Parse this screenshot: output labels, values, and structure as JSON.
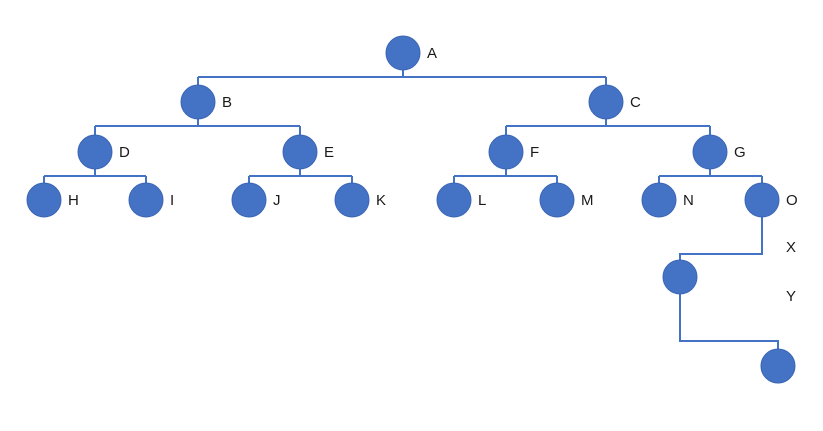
{
  "style": {
    "node_color": "#4472C4",
    "line_color": "#4472C4"
  },
  "nodes": [
    {
      "id": "A",
      "label": "A"
    },
    {
      "id": "B",
      "label": "B"
    },
    {
      "id": "C",
      "label": "C"
    },
    {
      "id": "D",
      "label": "D"
    },
    {
      "id": "E",
      "label": "E"
    },
    {
      "id": "F",
      "label": "F"
    },
    {
      "id": "G",
      "label": "G"
    },
    {
      "id": "H",
      "label": "H"
    },
    {
      "id": "I",
      "label": "I"
    },
    {
      "id": "J",
      "label": "J"
    },
    {
      "id": "K",
      "label": "K"
    },
    {
      "id": "L",
      "label": "L"
    },
    {
      "id": "M",
      "label": "M"
    },
    {
      "id": "N",
      "label": "N"
    },
    {
      "id": "O",
      "label": "O"
    },
    {
      "id": "X_node",
      "label": ""
    },
    {
      "id": "Y_node",
      "label": ""
    }
  ],
  "edges": [
    {
      "parent": "A",
      "children": [
        "B",
        "C"
      ]
    },
    {
      "parent": "B",
      "children": [
        "D",
        "E"
      ]
    },
    {
      "parent": "C",
      "children": [
        "F",
        "G"
      ]
    },
    {
      "parent": "D",
      "children": [
        "H",
        "I"
      ]
    },
    {
      "parent": "E",
      "children": [
        "J",
        "K"
      ]
    },
    {
      "parent": "F",
      "children": [
        "L",
        "M"
      ]
    },
    {
      "parent": "G",
      "children": [
        "N",
        "O"
      ]
    },
    {
      "parent": "O",
      "children": [
        "X_node"
      ]
    },
    {
      "parent": "X_node",
      "children": [
        "Y_node"
      ]
    }
  ],
  "free_labels": {
    "x": "X",
    "y": "Y"
  }
}
